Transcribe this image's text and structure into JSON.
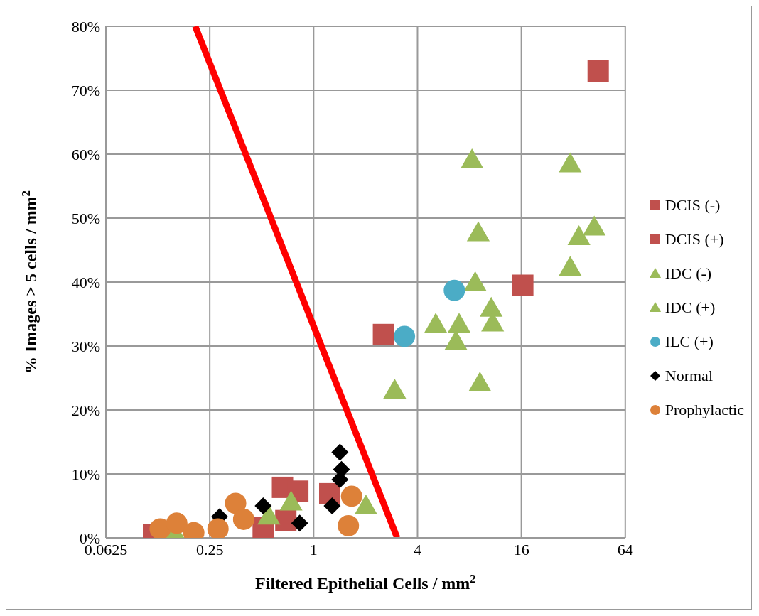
{
  "chart_data": {
    "type": "scatter",
    "xlabel": "Filtered Epithelial Cells / mm$^{2}$",
    "ylabel": "% Images > 5 cells / mm$^{2}$",
    "log": "x",
    "grid": true,
    "legend": "right",
    "xlim": [
      0.0625,
      64
    ],
    "xticks": [
      0.0625,
      0.25,
      1,
      4,
      16,
      64
    ],
    "ylim": [
      0,
      80
    ],
    "yticks": [
      {
        "value": 0,
        "label": "0%"
      },
      {
        "value": 10,
        "label": "10%"
      },
      {
        "value": 20,
        "label": "20%"
      },
      {
        "value": 30,
        "label": "30%"
      },
      {
        "value": 40,
        "label": "40%"
      },
      {
        "value": 50,
        "label": "50%"
      },
      {
        "value": 60,
        "label": "60%"
      },
      {
        "value": 70,
        "label": "70%"
      },
      {
        "value": 80,
        "label": "80%"
      }
    ],
    "series": [
      {
        "name": "DCIS (-)",
        "color": "#c0504d",
        "marker": "square",
        "x": [
          0.118,
          0.66,
          0.51,
          0.69
        ],
        "values": [
          0.5,
          7.9,
          1.6,
          2.7
        ]
      },
      {
        "name": "DCIS (+)",
        "color": "#c0504d",
        "marker": "square",
        "x": [
          0.81,
          1.24,
          2.54,
          16.3,
          44.6
        ],
        "values": [
          7.3,
          6.9,
          31.8,
          39.5,
          73
        ]
      },
      {
        "name": "IDC (-)",
        "color": "#9bbb59",
        "marker": "triangle",
        "x": [
          0.155,
          0.74,
          0.55
        ],
        "values": [
          1,
          5.6,
          3.4
        ]
      },
      {
        "name": "IDC (+)",
        "color": "#9bbb59",
        "marker": "triangle",
        "x": [
          8.28,
          30.7,
          9.0,
          42.3,
          34.5,
          30.7,
          8.64,
          10.7,
          10.9,
          5.1,
          6.97,
          6.68,
          2.95,
          9.2,
          2.01
        ],
        "values": [
          59.1,
          58.5,
          47.7,
          48.6,
          47.1,
          42.3,
          39.9,
          35.9,
          33.6,
          33.4,
          33.4,
          30.7,
          23.1,
          24.2,
          5.0
        ]
      },
      {
        "name": "ILC (+)",
        "color": "#4bacc6",
        "marker": "circle",
        "x": [
          6.54,
          3.36
        ],
        "values": [
          38.7,
          31.5
        ]
      },
      {
        "name": "Normal",
        "color": "#000000",
        "marker": "diamond",
        "x": [
          1.42,
          1.45,
          1.42,
          1.28,
          0.83,
          0.51,
          0.285
        ],
        "values": [
          13.4,
          10.7,
          9.1,
          5.0,
          2.3,
          5.0,
          3.3
        ]
      },
      {
        "name": "Prophylactic",
        "color": "#dd8139",
        "marker": "circle",
        "x": [
          0.129,
          0.161,
          0.202,
          0.279,
          0.353,
          0.393,
          1.66,
          1.59
        ],
        "values": [
          1.4,
          2.3,
          0.8,
          1.4,
          5.4,
          2.9,
          6.5,
          1.9
        ]
      },
      {
        "type": "line",
        "color": "#ff0000",
        "marker": "none",
        "x": [
          0.206,
          3.05
        ],
        "values": [
          80,
          0
        ]
      }
    ]
  }
}
